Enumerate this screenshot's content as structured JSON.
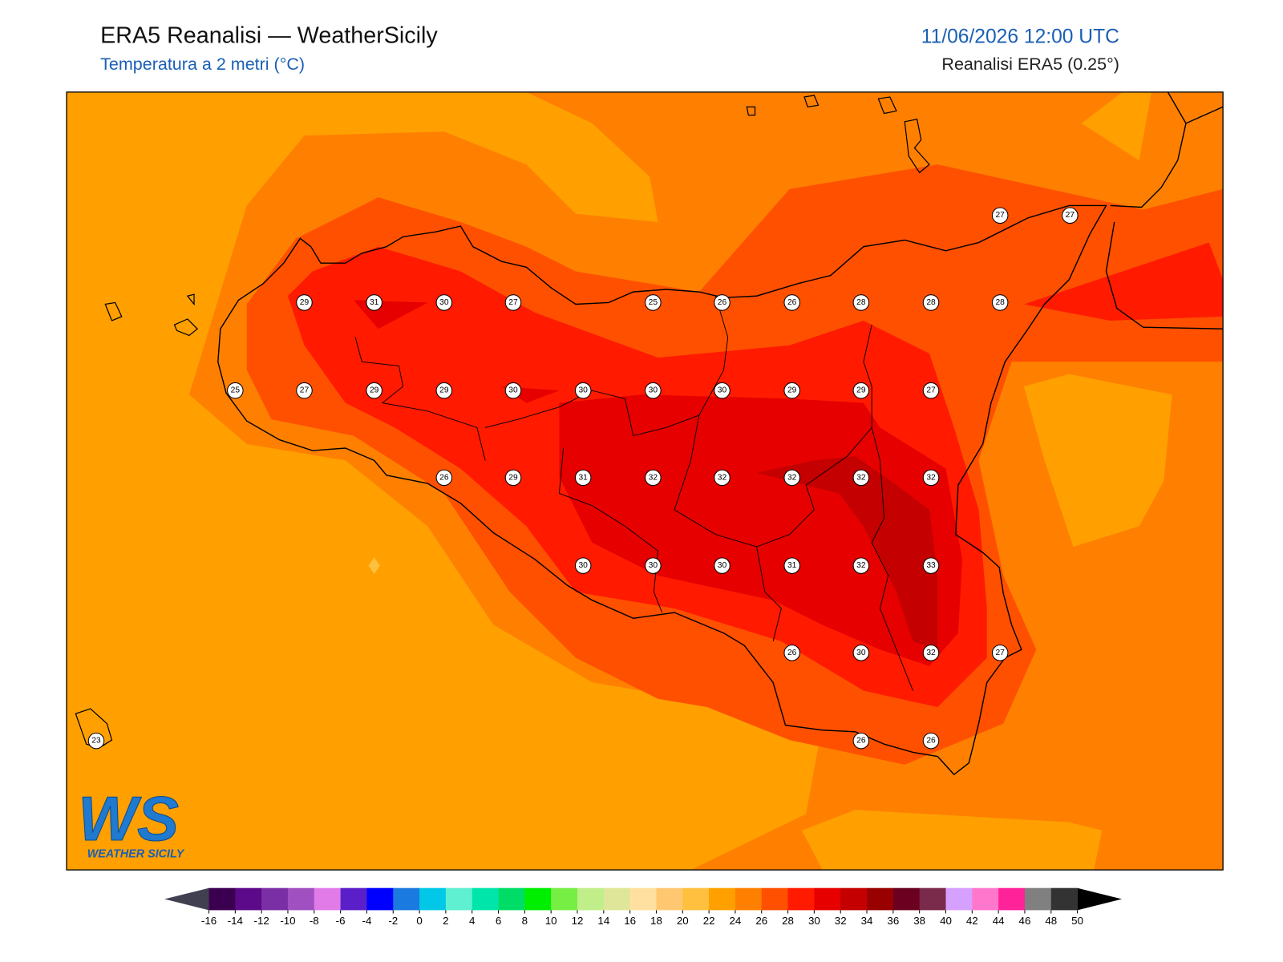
{
  "header": {
    "title": "ERA5 Reanalisi — WeatherSicily",
    "subtitle": "Temperatura a 2 metri (°C)",
    "datetime": "11/06/2026 12:00 UTC",
    "source": "Reanalisi ERA5 (0.25°)"
  },
  "map": {
    "stations": [
      27,
      27,
      29,
      31,
      30,
      27,
      25,
      26,
      26,
      28,
      28,
      28,
      25,
      27,
      29,
      29,
      30,
      30,
      30,
      30,
      29,
      29,
      27,
      26,
      29,
      31,
      32,
      32,
      32,
      32,
      32,
      30,
      30,
      30,
      31,
      32,
      33,
      26,
      30,
      32,
      27,
      23,
      26,
      26
    ]
  },
  "logo": {
    "mark": "WS",
    "text": "WEATHER SICILY"
  },
  "colorbar": {
    "ticks": [
      -16,
      -14,
      -12,
      -10,
      -8,
      -6,
      -4,
      -2,
      0,
      2,
      4,
      6,
      8,
      10,
      12,
      14,
      16,
      18,
      20,
      22,
      24,
      26,
      28,
      30,
      32,
      34,
      36,
      38,
      40,
      42,
      44,
      46,
      48,
      50
    ],
    "colors": [
      "#3b0050",
      "#5c0a8a",
      "#7b2fa5",
      "#a050c0",
      "#e07be8",
      "#5a1fc8",
      "#0000ff",
      "#1a7ae0",
      "#00c8e6",
      "#5ef0d0",
      "#00e6aa",
      "#00dd66",
      "#00ee00",
      "#77ee44",
      "#c0ee88",
      "#e0e699",
      "#ffe0a0",
      "#ffc870",
      "#ffc040",
      "#ffa000",
      "#ff8000",
      "#ff5000",
      "#ff1a00",
      "#e60000",
      "#c40000",
      "#990000",
      "#6b0020",
      "#7a2a4a",
      "#d6a0ff",
      "#ff77cc",
      "#ff2299",
      "#808080",
      "#333333"
    ],
    "under_color": "#404050",
    "over_color": "#000000"
  }
}
